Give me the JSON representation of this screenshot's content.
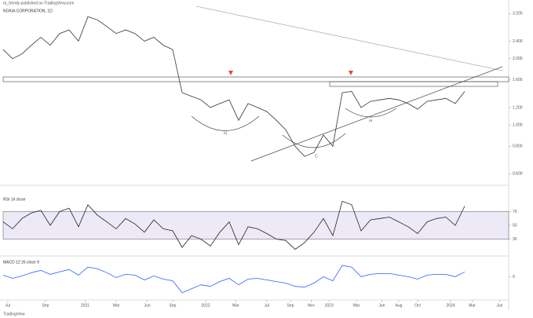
{
  "header": {
    "publisher": "ra_trendy published on TradingView.com",
    "footer": "TradingView"
  },
  "annotations": [
    "H",
    "C",
    "H"
  ],
  "chart_data": [
    {
      "type": "line",
      "title": "NOKIA CORPORATION, 1D",
      "log_scale": true,
      "color": "#333333",
      "x": [
        0,
        1,
        2,
        3,
        4,
        5,
        6,
        7,
        8,
        9,
        10,
        11,
        12,
        13,
        14,
        15,
        16,
        17,
        18,
        19,
        20,
        21,
        22,
        23,
        24,
        25,
        26,
        27,
        28,
        29,
        30,
        31,
        32,
        33,
        34,
        35,
        36,
        37,
        38,
        39,
        40,
        41,
        42,
        43,
        44,
        45,
        46,
        47,
        48,
        49
      ],
      "values": [
        2.2,
        2.0,
        2.1,
        2.3,
        2.5,
        2.3,
        2.6,
        2.7,
        2.4,
        3.1,
        3.0,
        2.8,
        2.6,
        2.7,
        2.6,
        2.4,
        2.5,
        2.3,
        2.2,
        1.4,
        1.35,
        1.3,
        1.2,
        1.25,
        1.3,
        1.05,
        1.25,
        1.2,
        1.15,
        1.05,
        0.95,
        0.8,
        0.72,
        0.75,
        0.9,
        0.8,
        1.4,
        1.42,
        1.2,
        1.28,
        1.3,
        1.32,
        1.3,
        1.25,
        1.18,
        1.28,
        1.3,
        1.32,
        1.25,
        1.42
      ],
      "xlim": [
        0,
        53
      ],
      "xticks": [
        {
          "value": 0.5,
          "label": "Jul"
        },
        {
          "value": 4.5,
          "label": "Sep"
        },
        {
          "value": 8.7,
          "label": "2021"
        },
        {
          "value": 12,
          "label": "Mar"
        },
        {
          "value": 15.3,
          "label": "Jun"
        },
        {
          "value": 18,
          "label": "Sep"
        },
        {
          "value": 21.5,
          "label": "2022"
        },
        {
          "value": 24.7,
          "label": "Mar"
        },
        {
          "value": 28,
          "label": "Jul"
        },
        {
          "value": 30.5,
          "label": "Sep"
        },
        {
          "value": 32.7,
          "label": "Nov"
        },
        {
          "value": 34.6,
          "label": "2023"
        },
        {
          "value": 37.5,
          "label": "Mar"
        },
        {
          "value": 40.2,
          "label": "Jun"
        },
        {
          "value": 42,
          "label": "Aug"
        },
        {
          "value": 44,
          "label": "Oct"
        },
        {
          "value": 47.5,
          "label": "2024"
        },
        {
          "value": 49.8,
          "label": "Mar"
        },
        {
          "value": 52.7,
          "label": "Jun"
        }
      ],
      "ylim": [
        0.55,
        3.4
      ],
      "yticks": [
        {
          "value": 0.6,
          "label": "0.600"
        },
        {
          "value": 0.8,
          "label": "0.800"
        },
        {
          "value": 1.0,
          "label": "1.000"
        },
        {
          "value": 1.2,
          "label": "1.200"
        },
        {
          "value": 1.6,
          "label": "1.600"
        },
        {
          "value": 2.0,
          "label": "2.000"
        },
        {
          "value": 2.4,
          "label": "2.400"
        },
        {
          "value": 3.2,
          "label": "3.200"
        }
      ]
    },
    {
      "type": "line",
      "title": "RSI 14 close",
      "color": "#222222",
      "values": [
        55,
        45,
        60,
        68,
        72,
        50,
        70,
        75,
        48,
        80,
        65,
        55,
        45,
        60,
        52,
        40,
        58,
        45,
        42,
        18,
        35,
        30,
        20,
        40,
        55,
        22,
        48,
        45,
        38,
        30,
        28,
        15,
        25,
        40,
        60,
        35,
        85,
        80,
        42,
        58,
        60,
        62,
        55,
        48,
        38,
        55,
        60,
        62,
        50,
        78
      ],
      "ylim": [
        10,
        90
      ],
      "yticks": [
        30,
        50,
        70
      ],
      "band": [
        30,
        70
      ],
      "band_color": "#ede9f7"
    },
    {
      "type": "line",
      "title": "MACD 12 26 close 9",
      "color": "#2962ff",
      "values": [
        0.02,
        -0.02,
        0.01,
        0.05,
        0.08,
        0.03,
        0.06,
        0.09,
        0.02,
        0.12,
        0.1,
        0.05,
        -0.01,
        0.03,
        0.02,
        -0.04,
        0.01,
        -0.03,
        -0.05,
        -0.2,
        -0.15,
        -0.1,
        -0.12,
        -0.06,
        -0.02,
        -0.1,
        -0.03,
        -0.02,
        -0.04,
        -0.06,
        -0.08,
        -0.12,
        -0.13,
        -0.08,
        0.0,
        -0.05,
        0.14,
        0.12,
        0.0,
        0.03,
        0.04,
        0.04,
        0.02,
        0.0,
        -0.03,
        0.02,
        0.03,
        0.03,
        0.0,
        0.06
      ],
      "ylim": [
        -0.25,
        0.2
      ],
      "yticks": [
        0
      ]
    }
  ]
}
